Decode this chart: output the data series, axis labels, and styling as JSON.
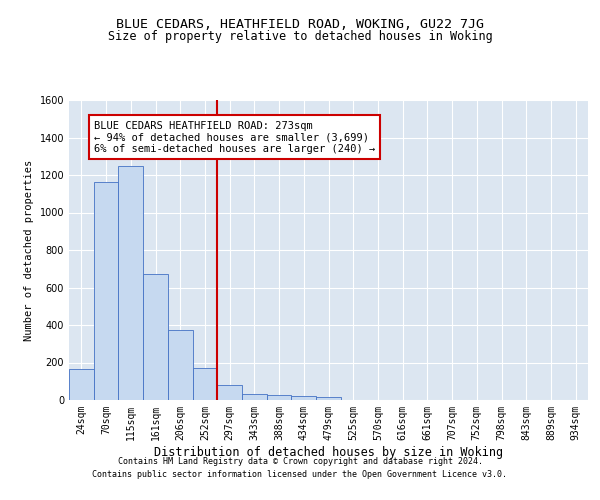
{
  "title1": "BLUE CEDARS, HEATHFIELD ROAD, WOKING, GU22 7JG",
  "title2": "Size of property relative to detached houses in Woking",
  "xlabel": "Distribution of detached houses by size in Woking",
  "ylabel": "Number of detached properties",
  "bin_labels": [
    "24sqm",
    "70sqm",
    "115sqm",
    "161sqm",
    "206sqm",
    "252sqm",
    "297sqm",
    "343sqm",
    "388sqm",
    "434sqm",
    "479sqm",
    "525sqm",
    "570sqm",
    "616sqm",
    "661sqm",
    "707sqm",
    "752sqm",
    "798sqm",
    "843sqm",
    "889sqm",
    "934sqm"
  ],
  "bar_heights": [
    165,
    1165,
    1250,
    670,
    375,
    170,
    80,
    30,
    25,
    20,
    15,
    0,
    0,
    0,
    0,
    0,
    0,
    0,
    0,
    0,
    0
  ],
  "bar_color": "#c6d9f0",
  "bar_edge_color": "#4472c4",
  "vline_bin": 5.5,
  "vline_color": "#cc0000",
  "annotation_line1": "BLUE CEDARS HEATHFIELD ROAD: 273sqm",
  "annotation_line2": "← 94% of detached houses are smaller (3,699)",
  "annotation_line3": "6% of semi-detached houses are larger (240) →",
  "annotation_box_color": "#ffffff",
  "annotation_box_edge_color": "#cc0000",
  "ylim": [
    0,
    1600
  ],
  "yticks": [
    0,
    200,
    400,
    600,
    800,
    1000,
    1200,
    1400,
    1600
  ],
  "background_color": "#dce6f1",
  "grid_color": "#ffffff",
  "footer_line1": "Contains HM Land Registry data © Crown copyright and database right 2024.",
  "footer_line2": "Contains public sector information licensed under the Open Government Licence v3.0.",
  "title1_fontsize": 9.5,
  "title2_fontsize": 8.5,
  "xlabel_fontsize": 8.5,
  "ylabel_fontsize": 7.5,
  "tick_fontsize": 7,
  "annotation_fontsize": 7.5,
  "footer_fontsize": 6
}
